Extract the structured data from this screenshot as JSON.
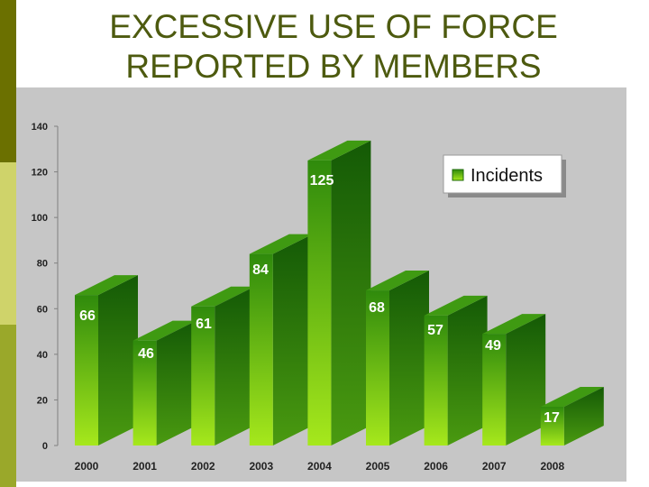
{
  "title_line1": "EXCESSIVE USE OF FORCE",
  "title_line2": "REPORTED BY MEMBERS",
  "chart_data": {
    "type": "bar",
    "categories": [
      "2000",
      "2001",
      "2002",
      "2003",
      "2004",
      "2005",
      "2006",
      "2007",
      "2008"
    ],
    "series": [
      {
        "name": "Incidents",
        "values": [
          66,
          46,
          61,
          84,
          125,
          68,
          57,
          49,
          17
        ]
      }
    ],
    "ylim": [
      0,
      140
    ],
    "yticks": [
      0,
      20,
      40,
      60,
      80,
      100,
      120,
      140
    ],
    "grid": false,
    "legend_position": "top-right",
    "colors": {
      "bar_light": "#a6e81c",
      "bar_dark": "#2f8a0c",
      "side": "#1e6a0a",
      "top": "#3f9a12",
      "label": "#ffffff",
      "tick": "#222222"
    }
  }
}
